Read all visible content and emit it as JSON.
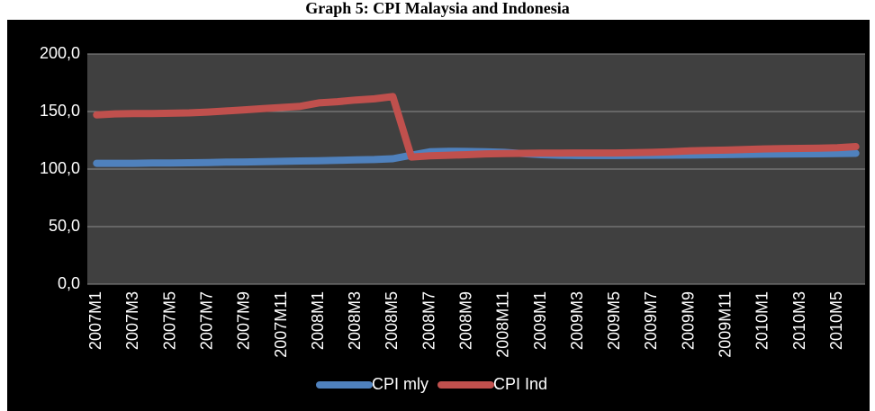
{
  "chart_data": {
    "type": "line",
    "title": "Graph 5: CPI Malaysia and Indonesia",
    "categories": [
      "2007M1",
      null,
      "2007M3",
      null,
      "2007M5",
      null,
      "2007M7",
      null,
      "2007M9",
      null,
      "2007M11",
      null,
      "2008M1",
      null,
      "2008M3",
      null,
      "2008M5",
      null,
      "2008M7",
      null,
      "2008M9",
      null,
      "2008M11",
      null,
      "2009M1",
      null,
      "2009M3",
      null,
      "2009M5",
      null,
      "2009M7",
      null,
      "2009M9",
      null,
      "2009M11",
      null,
      "2010M1",
      null,
      "2010M3",
      null,
      "2010M5",
      null
    ],
    "series": [
      {
        "name": "CPI mly",
        "color": "#4f81bd",
        "values": [
          105,
          105,
          105,
          105.2,
          105.3,
          105.5,
          105.7,
          106,
          106.2,
          106.4,
          106.7,
          107,
          107.3,
          107.6,
          108,
          108.3,
          109,
          112,
          115,
          115.5,
          115.3,
          115,
          114.5,
          113.5,
          112.5,
          112,
          111.8,
          111.8,
          111.8,
          111.9,
          112,
          112.1,
          112.2,
          112.4,
          112.6,
          112.8,
          113,
          113.1,
          113.2,
          113.3,
          113.5,
          113.7
        ]
      },
      {
        "name": "CPI Ind",
        "color": "#c0504d",
        "values": [
          147,
          148,
          148.2,
          148.2,
          148.5,
          148.8,
          149.5,
          150.5,
          151.5,
          152.5,
          153.5,
          154.5,
          157.5,
          158.5,
          160,
          161,
          163,
          110.5,
          111.5,
          112,
          112.5,
          113.2,
          113.5,
          113.7,
          113.8,
          113.9,
          114,
          114,
          114,
          114.2,
          114.5,
          115,
          115.8,
          116.2,
          116.5,
          117,
          117.5,
          117.8,
          118,
          118.2,
          118.5,
          119.5
        ]
      }
    ],
    "ylim": [
      0,
      200
    ],
    "yticks": [
      {
        "value": 0,
        "label": "0,0"
      },
      {
        "value": 50,
        "label": "50,0"
      },
      {
        "value": 100,
        "label": "100,0"
      },
      {
        "value": 150,
        "label": "150,0"
      },
      {
        "value": 200,
        "label": "200,0"
      }
    ],
    "grid": true,
    "legend": "bottom"
  }
}
